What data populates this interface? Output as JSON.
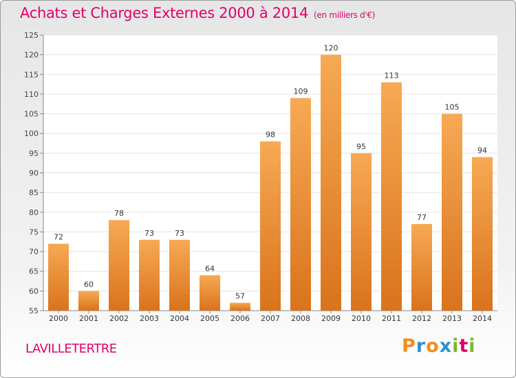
{
  "title": "Achats et Charges Externes 2000 à 2014",
  "subtitle": "(en milliers d'€)",
  "commune": "LAVILLETERTRE",
  "logo": {
    "text": "Proxiti",
    "letters": [
      "P",
      "r",
      "o",
      "x",
      "i",
      "t",
      "i"
    ],
    "colors": [
      "#f28c1e",
      "#2e8fd0",
      "#f28c1e",
      "#2e8fd0",
      "#7ab829",
      "#e0006f",
      "#7ab829"
    ]
  },
  "colors": {
    "accent": "#e0006f",
    "bar_light": "#f7a954",
    "bar_dark": "#d9731c"
  },
  "chart_data": {
    "type": "bar",
    "title": "Achats et Charges Externes 2000 à 2014",
    "subtitle": "(en milliers d'€)",
    "categories": [
      "2000",
      "2001",
      "2002",
      "2003",
      "2004",
      "2005",
      "2006",
      "2007",
      "2008",
      "2009",
      "2010",
      "2011",
      "2012",
      "2013",
      "2014"
    ],
    "values": [
      72,
      60,
      78,
      73,
      73,
      64,
      57,
      98,
      109,
      120,
      95,
      113,
      77,
      105,
      94
    ],
    "ylim": [
      55,
      125
    ],
    "yticks": [
      55,
      60,
      65,
      70,
      75,
      80,
      85,
      90,
      95,
      100,
      105,
      110,
      115,
      120,
      125
    ],
    "grid": true,
    "xlabel": "",
    "ylabel": ""
  }
}
